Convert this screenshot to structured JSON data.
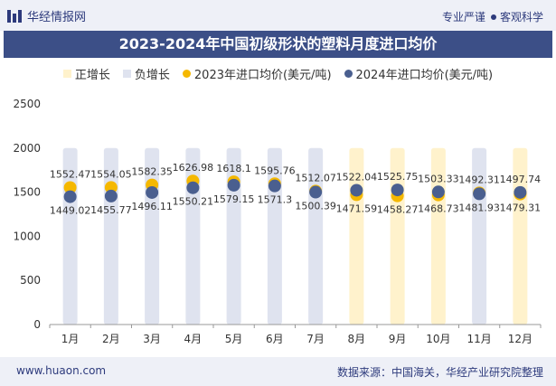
{
  "header": {
    "logo_text": "华经情报网",
    "tagline_left": "专业严谨",
    "tagline_right": "客观科学"
  },
  "title": "2023-2024年中国初级形状的塑料月度进口均价",
  "legend": {
    "items": [
      {
        "label": "正增长",
        "color": "#fff2cc"
      },
      {
        "label": "负增长",
        "color": "#dfe3ef"
      },
      {
        "label": "2023年进口均价(美元/吨)",
        "color": "#f5b800"
      },
      {
        "label": "2024年进口均价(美元/吨)",
        "color": "#4a5f8f"
      }
    ]
  },
  "footer": {
    "left": "www.huaon.com",
    "right": "数据来源：中国海关，华经产业研究院整理"
  },
  "chart_data": {
    "type": "scatter",
    "categories": [
      "1月",
      "2月",
      "3月",
      "4月",
      "5月",
      "6月",
      "7月",
      "8月",
      "9月",
      "10月",
      "11月",
      "12月"
    ],
    "ylim": [
      0,
      2500
    ],
    "yticks": [
      0,
      500,
      1000,
      1500,
      2000,
      2500
    ],
    "series": [
      {
        "name": "2023年进口均价(美元/吨)",
        "color": "#f5b800",
        "values": [
          1552.47,
          1554.05,
          1582.35,
          1626.98,
          1618.1,
          1595.76,
          1512.07,
          1471.59,
          1458.27,
          1468.73,
          1492.31,
          1479.31
        ],
        "labels": [
          "1552.47",
          "1554.05",
          "1582.35",
          "1626.98",
          "1618.1",
          "1595.76",
          "1512.07",
          "1471.59",
          "1458.27",
          "1468.73",
          "1492.31",
          "1479.31"
        ]
      },
      {
        "name": "2024年进口均价(美元/吨)",
        "color": "#4a5f8f",
        "values": [
          1449.02,
          1455.77,
          1496.11,
          1550.21,
          1579.15,
          1571.3,
          1500.39,
          1522.04,
          1525.75,
          1503.33,
          1481.93,
          1497.74
        ],
        "labels": [
          "1449.02",
          "1455.77",
          "1496.11",
          "1550.21",
          "1579.15",
          "1571.3",
          "1500.39",
          "1522.04",
          "1525.75",
          "1503.33",
          "1481.93",
          "1497.74"
        ]
      }
    ],
    "growth": [
      "负增长",
      "负增长",
      "负增长",
      "负增长",
      "负增长",
      "负增长",
      "负增长",
      "正增长",
      "正增长",
      "正增长",
      "负增长",
      "正增长"
    ],
    "growth_colors": {
      "正增长": "#fff2cc",
      "负增长": "#dfe3ef"
    },
    "grid": false
  }
}
